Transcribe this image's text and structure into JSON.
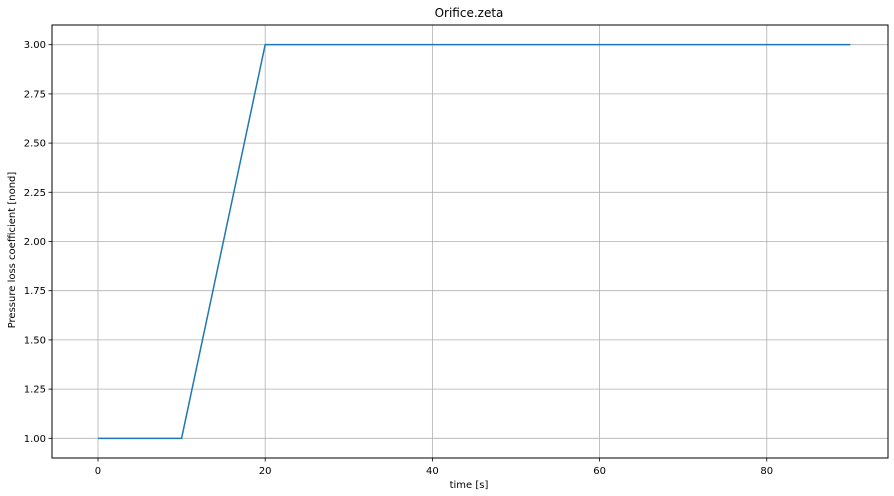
{
  "chart_data": {
    "type": "line",
    "title": "Orifice.zeta",
    "xlabel": "time [s]",
    "ylabel": "Pressure loss coefficient [nond]",
    "xlim": [
      -5.5,
      94.5
    ],
    "ylim": [
      0.9,
      3.1
    ],
    "xticks": [
      0,
      20,
      40,
      60,
      80
    ],
    "xtick_labels": [
      "0",
      "20",
      "40",
      "60",
      "80"
    ],
    "yticks": [
      1.0,
      1.25,
      1.5,
      1.75,
      2.0,
      2.25,
      2.5,
      2.75,
      3.0
    ],
    "ytick_labels": [
      "1.00",
      "1.25",
      "1.50",
      "1.75",
      "2.00",
      "2.25",
      "2.50",
      "2.75",
      "3.00"
    ],
    "grid": true,
    "series": [
      {
        "x": [
          0,
          10,
          20,
          90
        ],
        "y": [
          1.0,
          1.0,
          3.0,
          3.0
        ],
        "color": "#1f77b4"
      }
    ]
  }
}
